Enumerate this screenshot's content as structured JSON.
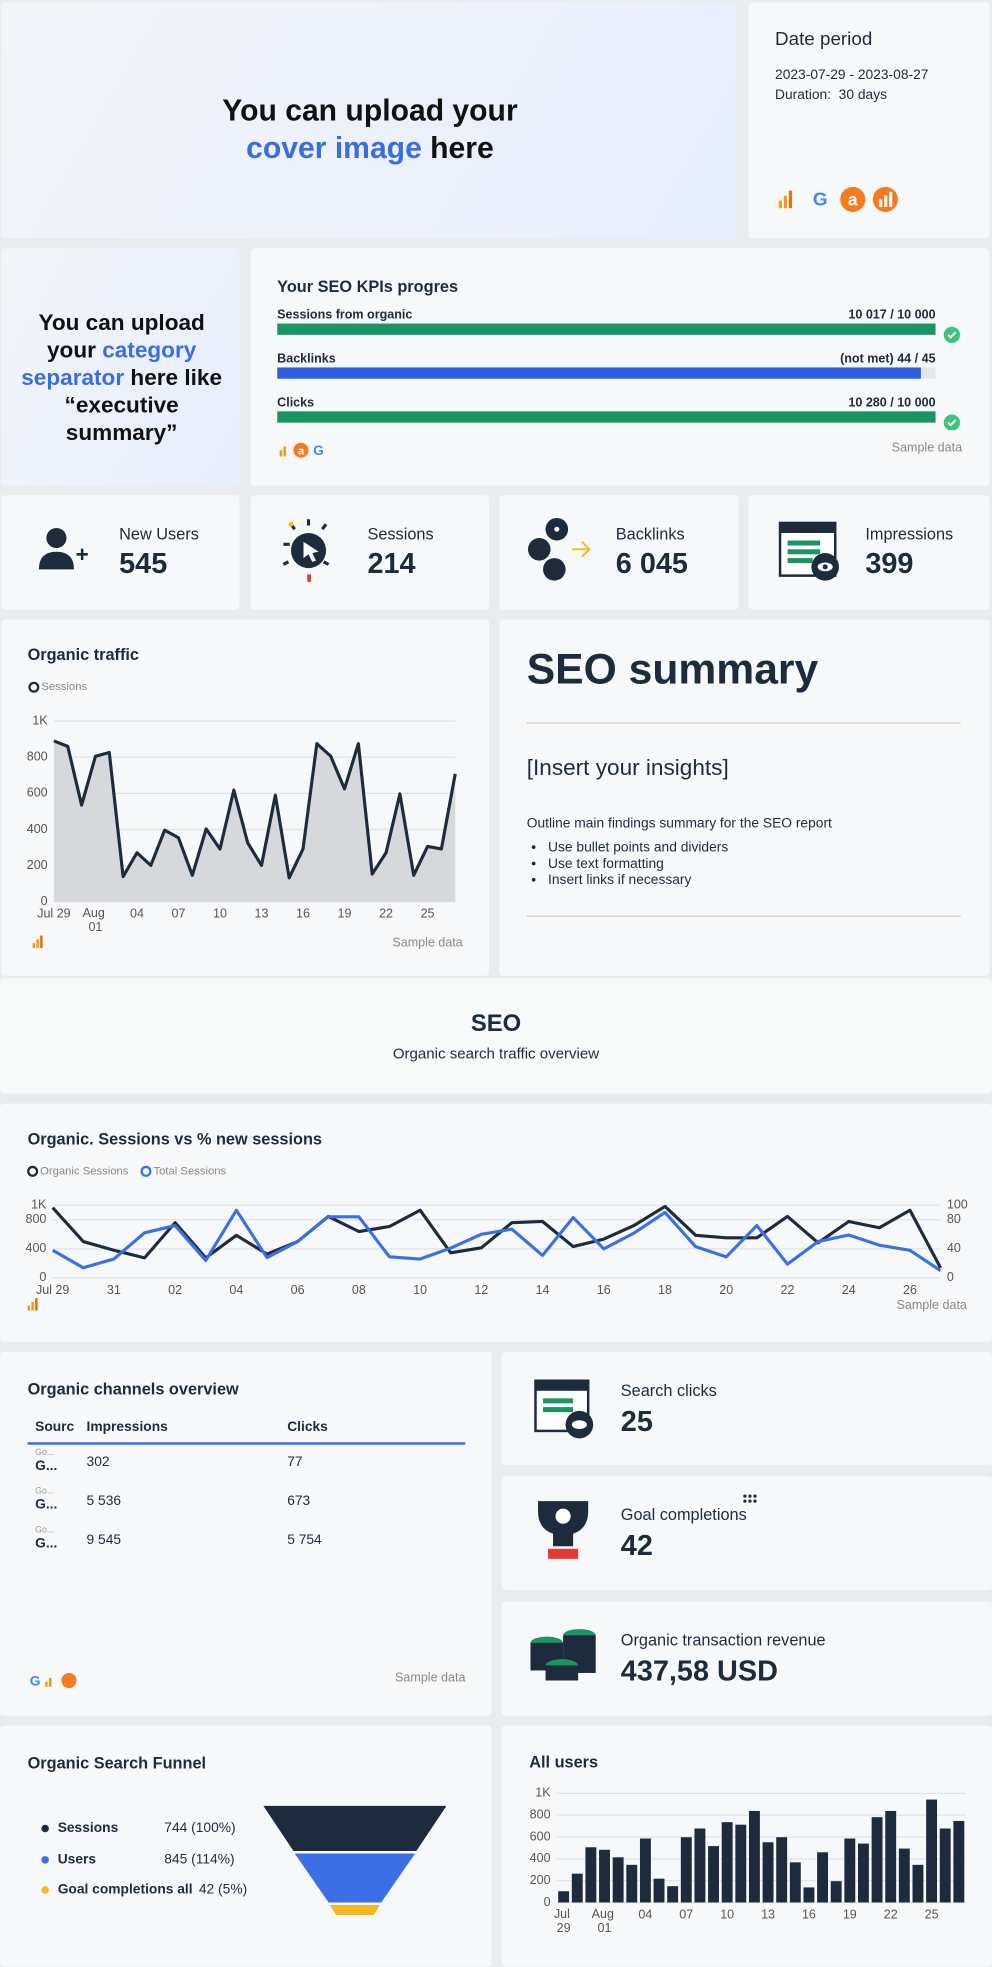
{
  "cover": {
    "line1": "You can upload your",
    "highlight": "cover image",
    "rest": "here"
  },
  "date_period": {
    "title": "Date period",
    "range": "2023-07-29 - 2023-08-27",
    "duration": "Duration:  30 days"
  },
  "category_separator": {
    "before": "You can upload your",
    "highlight": "category separator",
    "after": "here like “executive summary”"
  },
  "kpi_progress": {
    "title": "Your SEO KPIs progres",
    "items": [
      {
        "label": "Sessions from organic",
        "value_label": "10 017 / 10 000",
        "value": 10017,
        "target": 10000,
        "color": "#1a9463"
      },
      {
        "label": "Backlinks",
        "value_label": "(not met) 44 / 45",
        "value": 44,
        "target": 45,
        "color": "#2e5fe0"
      },
      {
        "label": "Clicks",
        "value_label": "10 280 / 10 000",
        "value": 10280,
        "target": 10000,
        "color": "#1a9463"
      }
    ],
    "note": "Sample data"
  },
  "scorecards": [
    {
      "label": "New Users",
      "value": "545"
    },
    {
      "label": "Sessions",
      "value": "214"
    },
    {
      "label": "Backlinks",
      "value": "6 045"
    },
    {
      "label": "Impressions",
      "value": "399"
    }
  ],
  "summary": {
    "title": "SEO summary",
    "subtitle": "[Insert your insights]",
    "text": "Outline main findings summary for the SEO report",
    "bullets": [
      "Use bullet points and dividers",
      "Use text formatting",
      "Insert links if necessary"
    ]
  },
  "section": {
    "title": "SEO",
    "subtitle": "Organic search traffic overview"
  },
  "channels": {
    "title": "Organic channels overview",
    "columns": [
      "Sourc",
      "Impressions",
      "Clicks"
    ],
    "rows": [
      {
        "source_hint": "Go...",
        "source": "G...",
        "impressions": "302",
        "clicks": "77"
      },
      {
        "source_hint": "Go...",
        "source": "G...",
        "impressions": "5 536",
        "clicks": "673"
      },
      {
        "source_hint": "Go...",
        "source": "G...",
        "impressions": "9 545",
        "clicks": "5 754"
      }
    ],
    "note": "Sample data"
  },
  "cards": [
    {
      "label": "Search clicks",
      "value": "25"
    },
    {
      "label": "Goal completions",
      "value": "42"
    },
    {
      "label": "Organic transaction revenue",
      "value": "437,58 USD"
    }
  ],
  "funnel": {
    "title": "Organic Search Funnel",
    "rows": [
      {
        "label": "Sessions",
        "value": "744 (100%)",
        "color": "#1e2b3c"
      },
      {
        "label": "Users",
        "value": "845 (114%)",
        "color": "#3c6fe6"
      },
      {
        "label": "Goal completions all",
        "value": "42 (5%)",
        "color": "#f6b820"
      }
    ]
  },
  "chart_data": [
    {
      "type": "line",
      "title": "Organic traffic",
      "note": "Sample data",
      "legend": "top-left",
      "grid": true,
      "fill_area": true,
      "categories": [
        "Jul 29",
        null,
        null,
        "Aug 01",
        null,
        null,
        "04",
        null,
        null,
        "07",
        null,
        null,
        "10",
        null,
        null,
        "13",
        null,
        null,
        "16",
        null,
        null,
        "19",
        null,
        null,
        "22",
        null,
        null,
        "25",
        null,
        null
      ],
      "ylim": [
        0,
        1000
      ],
      "yticks": [
        0,
        200,
        400,
        600,
        800,
        {
          "value": 1000,
          "label": "1K"
        }
      ],
      "series": [
        {
          "name": "Sessions",
          "color": "#1e2b3c",
          "values": [
            890,
            860,
            535,
            805,
            826,
            139,
            271,
            201,
            396,
            354,
            146,
            403,
            292,
            618,
            326,
            201,
            590,
            132,
            292,
            875,
            806,
            625,
            875,
            153,
            271,
            597,
            146,
            306,
            292,
            708
          ]
        }
      ]
    },
    {
      "type": "line",
      "title": "Organic. Sessions vs % new sessions",
      "note": "Sample data",
      "legend": "top-left",
      "grid": true,
      "categories": [
        "Jul 29",
        null,
        "31",
        null,
        "02",
        null,
        "04",
        null,
        "06",
        null,
        "08",
        null,
        "10",
        null,
        "12",
        null,
        "14",
        null,
        "16",
        null,
        "18",
        null,
        "20",
        null,
        "22",
        null,
        "24",
        null,
        "26",
        null
      ],
      "ylim": [
        0,
        1000
      ],
      "yticks": [
        0,
        400,
        800,
        {
          "value": 1000,
          "label": "1K"
        }
      ],
      "y2lim": [
        0,
        100
      ],
      "y2ticks": [
        0,
        40,
        80,
        100
      ],
      "series": [
        {
          "name": "Organic Sessions",
          "color": "#1e2b3c",
          "values": [
            966,
            500,
            380,
            276,
            760,
            276,
            586,
            328,
            500,
            845,
            638,
            707,
            931,
            345,
            414,
            760,
            776,
            431,
            534,
            724,
            983,
            586,
            552,
            552,
            845,
            483,
            776,
            690,
            931,
            138
          ]
        },
        {
          "name": "Total Sessions",
          "color": "#3c6fe6",
          "axis": "y2",
          "values": [
            38,
            14,
            26,
            62,
            72,
            24,
            93,
            28,
            50,
            84,
            84,
            29,
            26,
            41,
            60,
            67,
            31,
            83,
            40,
            62,
            90,
            43,
            29,
            72,
            19,
            50,
            59,
            45,
            38,
            10
          ]
        }
      ]
    },
    {
      "type": "bar",
      "title": "All users",
      "grid": true,
      "color": "#1e2b3c",
      "categories": [
        "Jul 29",
        null,
        null,
        "Aug 01",
        null,
        null,
        "04",
        null,
        null,
        "07",
        null,
        null,
        "10",
        null,
        null,
        "13",
        null,
        null,
        "16",
        null,
        null,
        "19",
        null,
        null,
        "22",
        null,
        null,
        "25",
        null,
        null
      ],
      "ylim": [
        0,
        1000
      ],
      "yticks": [
        0,
        200,
        400,
        600,
        800,
        {
          "value": 1000,
          "label": "1K"
        }
      ],
      "values": [
        103,
        264,
        506,
        483,
        414,
        345,
        586,
        218,
        149,
        598,
        678,
        517,
        736,
        713,
        839,
        552,
        598,
        368,
        138,
        460,
        195,
        586,
        540,
        782,
        839,
        494,
        345,
        943,
        678,
        747
      ]
    }
  ]
}
